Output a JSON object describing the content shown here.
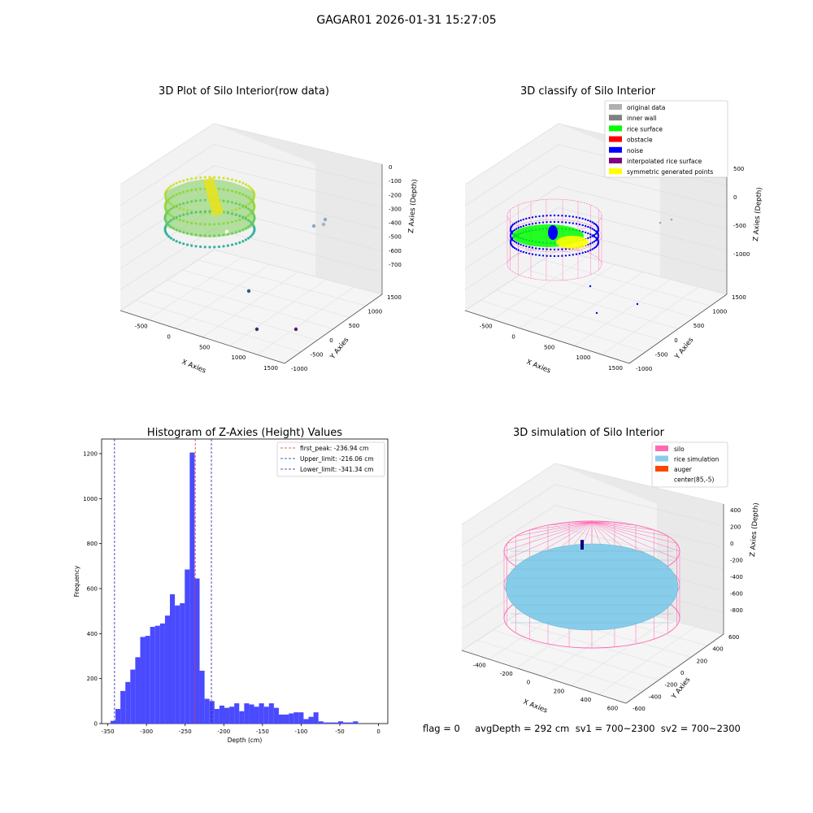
{
  "figure_title": "GAGAR01 2026-01-31 15:27:05",
  "status_line": "flag = 0     avgDepth = 292 cm  sv1 = 700~2300  sv2 = 700~2300",
  "colors": {
    "hist_bar": "#4a4aff",
    "first_peak": "#e03030",
    "limits": "#2020a0",
    "silo": "#ff69b4",
    "rice": "#87cdea",
    "auger": "#ff4500"
  },
  "chart_data": [
    {
      "type": "scatter",
      "subtype": "3d",
      "title": "3D Plot of Silo Interior(row data)",
      "xlabel": "X Axies",
      "ylabel": "Y Axies",
      "zlabel": "Z Axies (Depth)",
      "x_ticks": [
        "-500",
        "0",
        "500",
        "1000",
        "1500"
      ],
      "y_ticks": [
        "-1000",
        "-500",
        "0",
        "500",
        "1000",
        "1500"
      ],
      "z_ticks": [
        "0",
        "-100",
        "-200",
        "-300",
        "-400",
        "-500",
        "-600",
        "-700"
      ],
      "colormap": "viridis"
    },
    {
      "type": "scatter",
      "subtype": "3d",
      "title": "3D classify of Silo Interior",
      "xlabel": "X Axies",
      "ylabel": "Y Axies",
      "zlabel": "Z Axies (Depth)",
      "x_ticks": [
        "-500",
        "0",
        "500",
        "1000",
        "1500"
      ],
      "y_ticks": [
        "-1000",
        "-500",
        "0",
        "500",
        "1000",
        "1500"
      ],
      "z_ticks": [
        "500",
        "0",
        "-500",
        "-1000"
      ],
      "z_top_tick": "500",
      "legend": [
        {
          "label": "original data",
          "color": "#b0b0b0"
        },
        {
          "label": "inner wall",
          "color": "#808080"
        },
        {
          "label": "rice surface",
          "color": "#00ff00"
        },
        {
          "label": "obstacle",
          "color": "#ff0000"
        },
        {
          "label": "noise",
          "color": "#0000ff"
        },
        {
          "label": "interpolated rice surface",
          "color": "#800080"
        },
        {
          "label": "symmetric generated points",
          "color": "#ffff00"
        }
      ],
      "legend_position": "top-right"
    },
    {
      "type": "bar",
      "subtype": "histogram",
      "title": "Histogram of Z-Axies (Height) Values",
      "xlabel": "Depth (cm)",
      "ylabel": "Frequency",
      "xlim": [
        -358,
        12
      ],
      "ylim": [
        0,
        1265
      ],
      "x_ticks": [
        -350,
        -300,
        -250,
        -200,
        -150,
        -100,
        -50,
        0
      ],
      "y_ticks": [
        0,
        200,
        400,
        600,
        800,
        1000,
        1200
      ],
      "bin_start": -346.5,
      "bin_width": 6.4,
      "values": [
        12,
        65,
        145,
        185,
        240,
        295,
        385,
        390,
        430,
        435,
        445,
        480,
        575,
        525,
        535,
        685,
        1205,
        645,
        235,
        110,
        100,
        65,
        80,
        70,
        75,
        90,
        55,
        90,
        85,
        75,
        90,
        75,
        90,
        70,
        40,
        40,
        45,
        50,
        50,
        20,
        30,
        50,
        10,
        5,
        5,
        5,
        10,
        5,
        5,
        10
      ],
      "vlines": [
        {
          "label": "first_peak: -236.94 cm",
          "x": -236.94,
          "color": "#e03030"
        },
        {
          "label": "Upper_limit: -216.06 cm",
          "x": -216.06,
          "color": "#2020a0"
        },
        {
          "label": "Lower_limit: -341.34 cm",
          "x": -341.34,
          "color": "#2020a0"
        }
      ],
      "legend_position": "top-right"
    },
    {
      "type": "scatter",
      "subtype": "3d",
      "title": "3D simulation of Silo Interior",
      "xlabel": "X Axies",
      "ylabel": "Y Axies",
      "zlabel": "Z Axies (Depth)",
      "x_ticks": [
        "-400",
        "-200",
        "0",
        "200",
        "400",
        "600"
      ],
      "y_ticks": [
        "-600",
        "-400",
        "-200",
        "0",
        "200",
        "400",
        "600"
      ],
      "z_ticks": [
        "400",
        "200",
        "0",
        "-200",
        "-400",
        "-600",
        "-800"
      ],
      "legend": [
        {
          "label": "silo",
          "color": "#ff69b4"
        },
        {
          "label": "rice simulation",
          "color": "#87cdea"
        },
        {
          "label": "auger",
          "color": "#ff4500"
        },
        {
          "label": "center(85,-5)",
          "color": "#ffffff"
        }
      ],
      "legend_position": "top-right"
    }
  ]
}
